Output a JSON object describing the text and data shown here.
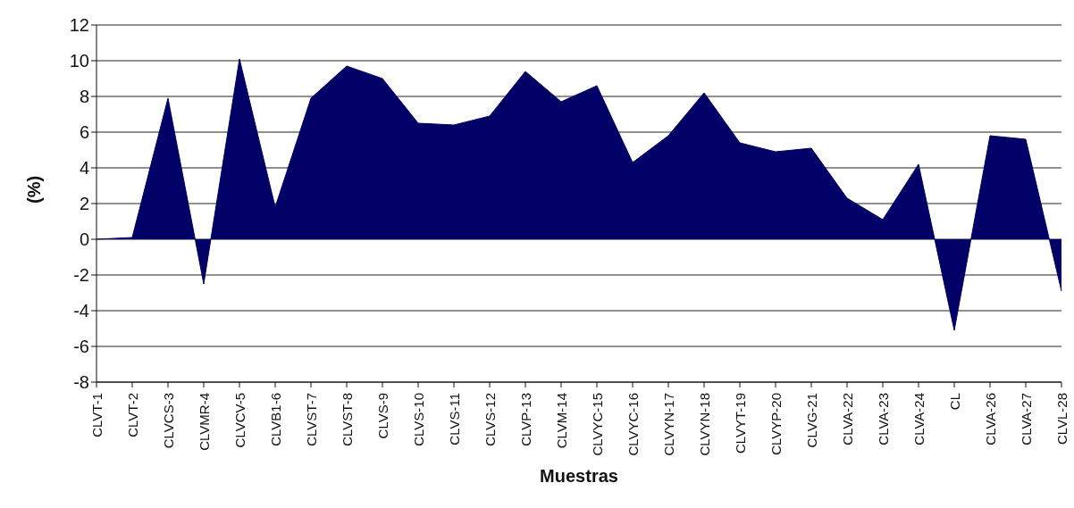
{
  "chart_data": {
    "type": "area",
    "xlabel": "Muestras",
    "ylabel": "(%)",
    "categories": [
      "CLVT-1",
      "CLVT-2",
      "CLVCS-3",
      "CLVMR-4",
      "CLVCV-5",
      "CLVB1-6",
      "CLVST-7",
      "CLVST-8",
      "CLVS-9",
      "CLVS-10",
      "CLVS-11",
      "CLVS-12",
      "CLVP-13",
      "CLVM-14",
      "CLVYC-15",
      "CLVYC-16",
      "CLVYN-17",
      "CLVYN-18",
      "CLVYT-19",
      "CLVYP-20",
      "CLVG-21",
      "CLVA-22",
      "CLVA-23",
      "CLVA-24",
      "CL",
      "CLVA-26",
      "CLVA-27",
      "CLVL-28"
    ],
    "values": [
      0,
      0.1,
      7.9,
      -2.5,
      10.1,
      1.8,
      7.9,
      9.7,
      9.0,
      6.5,
      6.4,
      6.9,
      9.4,
      7.7,
      8.6,
      4.3,
      5.8,
      8.2,
      5.4,
      4.9,
      5.1,
      2.3,
      1.1,
      4.2,
      -5.1,
      5.8,
      5.6,
      -2.9
    ],
    "color": "#000066",
    "ylim": [
      -8,
      12
    ],
    "yticks": [
      -8,
      -6,
      -4,
      -2,
      0,
      2,
      4,
      6,
      8,
      10,
      12
    ],
    "grid": "y"
  }
}
